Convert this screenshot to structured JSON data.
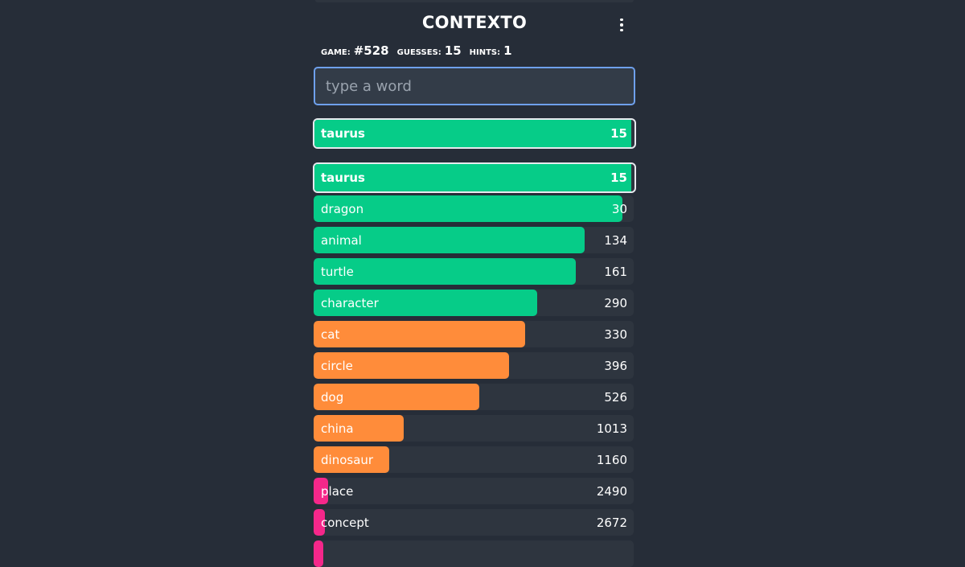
{
  "header": {
    "title": "CONTEXTO",
    "menu_icon": "more-vertical-icon"
  },
  "stats": {
    "game_label": "GAME:",
    "game_value": "#528",
    "guesses_label": "GUESSES:",
    "guesses_value": "15",
    "hints_label": "HINTS:",
    "hints_value": "1"
  },
  "input": {
    "placeholder": "type a word",
    "value": ""
  },
  "colors": {
    "close": "#06cc88",
    "medium": "#ff8c3a",
    "far": "#f5278a",
    "row_bg": "#2e353f",
    "highlight_border": "#e6e9ee"
  },
  "last_guess": {
    "word": "taurus",
    "rank": "15",
    "fill": 0.99,
    "color": "close"
  },
  "guesses": [
    {
      "word": "taurus",
      "rank": "15",
      "fill": 0.99,
      "color": "close",
      "highlight": true
    },
    {
      "word": "dragon",
      "rank": "30",
      "fill": 0.965,
      "color": "close"
    },
    {
      "word": "animal",
      "rank": "134",
      "fill": 0.847,
      "color": "close"
    },
    {
      "word": "turtle",
      "rank": "161",
      "fill": 0.82,
      "color": "close"
    },
    {
      "word": "character",
      "rank": "290",
      "fill": 0.699,
      "color": "close"
    },
    {
      "word": "cat",
      "rank": "330",
      "fill": 0.661,
      "color": "medium"
    },
    {
      "word": "circle",
      "rank": "396",
      "fill": 0.611,
      "color": "medium"
    },
    {
      "word": "dog",
      "rank": "526",
      "fill": 0.518,
      "color": "medium"
    },
    {
      "word": "china",
      "rank": "1013",
      "fill": 0.281,
      "color": "medium"
    },
    {
      "word": "dinosaur",
      "rank": "1160",
      "fill": 0.236,
      "color": "medium"
    },
    {
      "word": "place",
      "rank": "2490",
      "fill": 0.045,
      "color": "far"
    },
    {
      "word": "concept",
      "rank": "2672",
      "fill": 0.035,
      "color": "far"
    },
    {
      "word": "",
      "rank": "",
      "fill": 0.03,
      "color": "far"
    }
  ]
}
